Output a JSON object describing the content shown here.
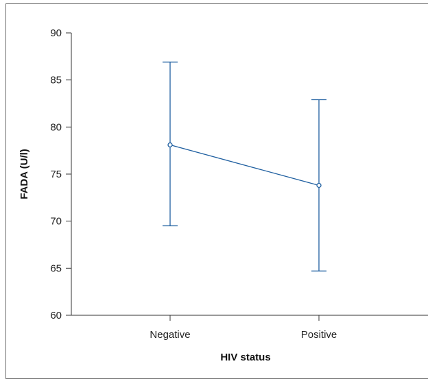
{
  "chart_data": {
    "type": "line",
    "xlabel": "HIV status",
    "ylabel": "FADA (U/l)",
    "categories": [
      "Negative",
      "Positive"
    ],
    "series": [
      {
        "values": [
          78.1,
          73.8
        ],
        "error_low": [
          69.5,
          64.7
        ],
        "error_high": [
          86.9,
          82.9
        ]
      }
    ],
    "ylim": [
      60,
      90
    ],
    "yticks": [
      60,
      65,
      70,
      75,
      80,
      85,
      90
    ],
    "grid": false,
    "colors": {
      "series": "#1f5fa0",
      "axis": "#333333"
    }
  }
}
